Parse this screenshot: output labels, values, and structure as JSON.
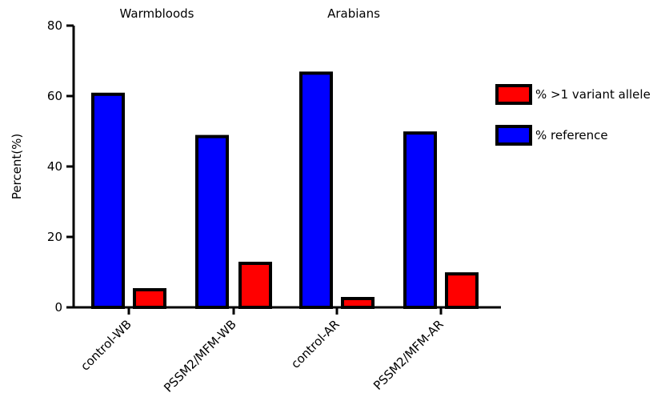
{
  "chart_data": {
    "type": "bar",
    "categories": [
      "control-WB",
      "PSSM2/MFM-WB",
      "control-AR",
      "PSSM2/MFM-AR"
    ],
    "series": [
      {
        "name": "% reference",
        "values": [
          60.5,
          48.5,
          66.5,
          49.5
        ],
        "color": "#0000FF"
      },
      {
        "name": "% >1 variant allele",
        "values": [
          5,
          12.5,
          2.5,
          9.5
        ],
        "color": "#FF0000"
      }
    ],
    "group_labels": [
      "Warmbloods",
      "Arabians"
    ],
    "ylabel": "Percent(%)",
    "xlabel": "",
    "ylim": [
      0,
      80
    ],
    "yticks": [
      0,
      20,
      40,
      60,
      80
    ],
    "legend_order": [
      "% >1 variant allele",
      "% reference"
    ],
    "legend_position": "right",
    "grid": false,
    "bar_outline_color": "#000000"
  }
}
